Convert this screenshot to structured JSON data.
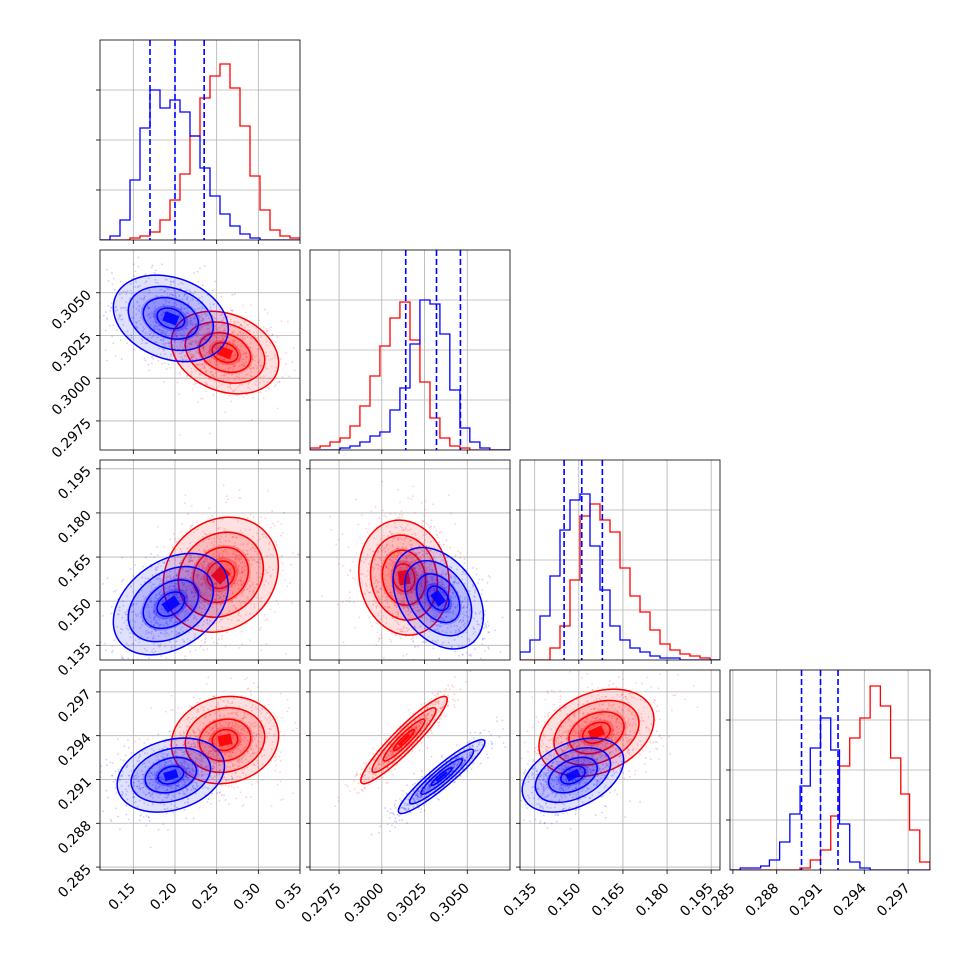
{
  "colors": {
    "red": "#ff0000",
    "blue": "#0000ff",
    "grid": "#b0b0b0",
    "frame": "#000000"
  },
  "chart_data": {
    "type": "corner",
    "series": [
      {
        "name": "",
        "color": "#ff0000"
      },
      {
        "name": "",
        "color": "#0000ff"
      }
    ],
    "parameters": [
      {
        "range": [
          0.11,
          0.35
        ],
        "ticks": [
          0.15,
          0.2,
          0.25,
          0.3,
          0.35
        ],
        "tick_labels": [
          "0.15",
          "0.20",
          "0.25",
          "0.30",
          "0.35"
        ]
      },
      {
        "range": [
          0.2958,
          0.3075
        ],
        "ticks": [
          0.2975,
          0.3,
          0.3025,
          0.305
        ],
        "tick_labels": [
          "0.2975",
          "0.3000",
          "0.3025",
          "0.3050"
        ]
      },
      {
        "range": [
          0.13,
          0.198
        ],
        "ticks": [
          0.135,
          0.15,
          0.165,
          0.18,
          0.195
        ],
        "tick_labels": [
          "0.135",
          "0.150",
          "0.165",
          "0.180",
          "0.195"
        ]
      },
      {
        "range": [
          0.2848,
          0.2985
        ],
        "ticks": [
          0.285,
          0.288,
          0.291,
          0.294,
          0.297
        ],
        "tick_labels": [
          "0.285",
          "0.288",
          "0.291",
          "0.294",
          "0.297"
        ]
      }
    ],
    "histograms": [
      {
        "edges": [
          0.11,
          0.122,
          0.134,
          0.146,
          0.158,
          0.17,
          0.182,
          0.194,
          0.206,
          0.218,
          0.23,
          0.242,
          0.254,
          0.266,
          0.278,
          0.29,
          0.302,
          0.314,
          0.326,
          0.338,
          0.35
        ],
        "red": [
          0,
          0,
          0,
          0.01,
          0.02,
          0.04,
          0.1,
          0.2,
          0.33,
          0.52,
          0.71,
          0.82,
          0.88,
          0.76,
          0.57,
          0.32,
          0.15,
          0.05,
          0.02,
          0.01
        ],
        "blue": [
          0,
          0.02,
          0.1,
          0.3,
          0.56,
          0.75,
          0.66,
          0.7,
          0.64,
          0.52,
          0.36,
          0.22,
          0.13,
          0.07,
          0.03,
          0.01,
          0,
          0,
          0,
          0
        ],
        "blue_quantiles": [
          0.17,
          0.2,
          0.235
        ]
      },
      {
        "edges": [
          0.2958,
          0.29639,
          0.29697,
          0.29756,
          0.29814,
          0.29872,
          0.29931,
          0.29989,
          0.30048,
          0.30106,
          0.30165,
          0.30223,
          0.30282,
          0.3034,
          0.30398,
          0.30457,
          0.30515,
          0.30574,
          0.30632,
          0.30691,
          0.3075
        ],
        "red": [
          0.01,
          0.02,
          0.04,
          0.06,
          0.12,
          0.22,
          0.37,
          0.52,
          0.66,
          0.74,
          0.55,
          0.34,
          0.16,
          0.06,
          0.02,
          0.01,
          0,
          0,
          0,
          0
        ],
        "blue": [
          0,
          0,
          0,
          0.01,
          0.02,
          0.04,
          0.07,
          0.09,
          0.2,
          0.31,
          0.53,
          0.75,
          0.73,
          0.58,
          0.3,
          0.11,
          0.04,
          0.01,
          0,
          0
        ],
        "blue_quantiles": [
          0.3014,
          0.3032,
          0.3046
        ]
      },
      {
        "edges": [
          0.13,
          0.1334,
          0.1368,
          0.1402,
          0.1436,
          0.147,
          0.1504,
          0.1538,
          0.1572,
          0.1606,
          0.164,
          0.1674,
          0.1708,
          0.1742,
          0.1776,
          0.181,
          0.1844,
          0.1878,
          0.1912,
          0.1946,
          0.198
        ],
        "red": [
          0,
          0,
          0,
          0.06,
          0.17,
          0.4,
          0.72,
          0.78,
          0.7,
          0.64,
          0.46,
          0.32,
          0.24,
          0.15,
          0.08,
          0.05,
          0.03,
          0.02,
          0.01,
          0
        ],
        "blue": [
          0.04,
          0.1,
          0.22,
          0.42,
          0.65,
          0.8,
          0.83,
          0.57,
          0.35,
          0.17,
          0.1,
          0.06,
          0.04,
          0.02,
          0.01,
          0.01,
          0,
          0,
          0,
          0
        ],
        "blue_quantiles": [
          0.145,
          0.151,
          0.158
        ]
      },
      {
        "edges": [
          0.2848,
          0.2855,
          0.2862,
          0.2869,
          0.2875,
          0.2882,
          0.2889,
          0.2896,
          0.2903,
          0.291,
          0.2917,
          0.2923,
          0.293,
          0.2937,
          0.2944,
          0.2951,
          0.2958,
          0.2965,
          0.2971,
          0.2978,
          0.2985
        ],
        "red": [
          0,
          0,
          0,
          0,
          0,
          0,
          0,
          0.01,
          0.05,
          0.1,
          0.27,
          0.52,
          0.66,
          0.76,
          0.92,
          0.82,
          0.56,
          0.38,
          0.2,
          0.04
        ],
        "blue": [
          0,
          0.01,
          0.01,
          0.02,
          0.05,
          0.14,
          0.28,
          0.42,
          0.61,
          0.76,
          0.6,
          0.23,
          0.04,
          0.01,
          0,
          0,
          0,
          0,
          0,
          0
        ],
        "blue_quantiles": [
          0.2897,
          0.291,
          0.2922
        ]
      }
    ],
    "pair_distributions": [
      {
        "x": 0,
        "y": 1,
        "red": {
          "mean": [
            0.26,
            0.3015
          ],
          "sd": [
            0.028,
            0.00105
          ],
          "rho": -0.25
        },
        "blue": {
          "mean": [
            0.195,
            0.3035
          ],
          "sd": [
            0.03,
            0.0011
          ],
          "rho": -0.25
        }
      },
      {
        "x": 0,
        "y": 2,
        "red": {
          "mean": [
            0.255,
            0.159
          ],
          "sd": [
            0.03,
            0.0085
          ],
          "rho": 0.15
        },
        "blue": {
          "mean": [
            0.195,
            0.149
          ],
          "sd": [
            0.03,
            0.0075
          ],
          "rho": 0.35
        }
      },
      {
        "x": 1,
        "y": 2,
        "red": {
          "mean": [
            0.3013,
            0.158
          ],
          "sd": [
            0.00115,
            0.0085
          ],
          "rho": -0.1
        },
        "blue": {
          "mean": [
            0.3033,
            0.151
          ],
          "sd": [
            0.00115,
            0.0075
          ],
          "rho": -0.35
        }
      },
      {
        "x": 0,
        "y": 3,
        "red": {
          "mean": [
            0.26,
            0.2937
          ],
          "sd": [
            0.028,
            0.0013
          ],
          "rho": 0.1
        },
        "blue": {
          "mean": [
            0.195,
            0.2913
          ],
          "sd": [
            0.028,
            0.0011
          ],
          "rho": 0.25
        }
      },
      {
        "x": 1,
        "y": 3,
        "red": {
          "mean": [
            0.3013,
            0.2937
          ],
          "sd": [
            0.0011,
            0.0013
          ],
          "rho": 0.93
        },
        "blue": {
          "mean": [
            0.3035,
            0.2912
          ],
          "sd": [
            0.0011,
            0.0011
          ],
          "rho": 0.93
        }
      },
      {
        "x": 2,
        "y": 3,
        "red": {
          "mean": [
            0.156,
            0.2942
          ],
          "sd": [
            0.0085,
            0.0013
          ],
          "rho": 0.3
        },
        "blue": {
          "mean": [
            0.148,
            0.2913
          ],
          "sd": [
            0.0075,
            0.0011
          ],
          "rho": 0.4
        }
      }
    ]
  }
}
